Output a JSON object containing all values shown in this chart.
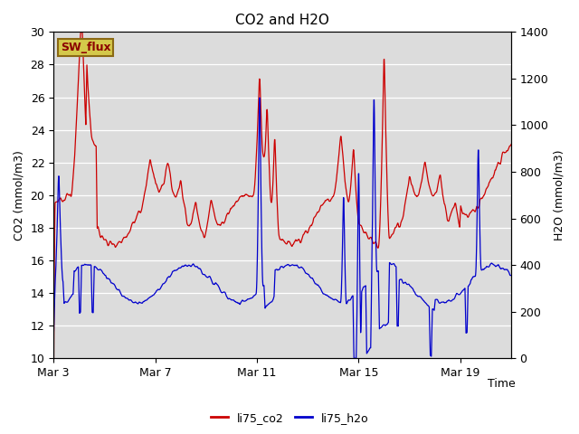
{
  "title": "CO2 and H2O",
  "xlabel": "Time",
  "ylabel_left": "CO2 (mmol/m3)",
  "ylabel_right": "H2O (mmol/m3)",
  "ylim_left": [
    10,
    30
  ],
  "ylim_right": [
    0,
    1400
  ],
  "yticks_left": [
    10,
    12,
    14,
    16,
    18,
    20,
    22,
    24,
    26,
    28,
    30
  ],
  "yticks_right": [
    0,
    200,
    400,
    600,
    800,
    1000,
    1200,
    1400
  ],
  "xtick_labels": [
    "Mar 3",
    "Mar 7",
    "Mar 11",
    "Mar 15",
    "Mar 19"
  ],
  "bg_color": "#dcdcdc",
  "fig_bg_color": "#ffffff",
  "line_co2_color": "#cc0000",
  "line_h2o_color": "#0000cc",
  "legend_co2": "li75_co2",
  "legend_h2o": "li75_h2o",
  "annotation_text": "SW_flux",
  "annotation_bg": "#d4c84a",
  "annotation_border": "#8b6914",
  "annotation_text_color": "#8b0000"
}
